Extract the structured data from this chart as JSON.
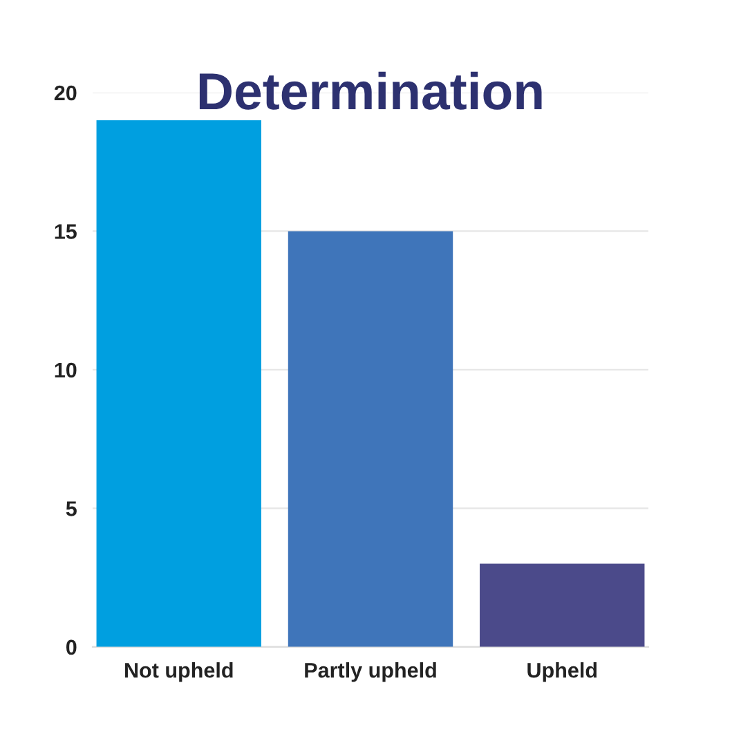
{
  "chart_data": {
    "type": "bar",
    "title": "Determination",
    "categories": [
      "Not upheld",
      "Partly upheld",
      "Upheld"
    ],
    "values": [
      19,
      15,
      3
    ],
    "colors": [
      "#009fe0",
      "#3f75ba",
      "#4b4a8a"
    ],
    "ylim": [
      0,
      20
    ],
    "yticks": [
      0,
      5,
      10,
      15,
      20
    ],
    "grid": "y",
    "legend": false
  }
}
